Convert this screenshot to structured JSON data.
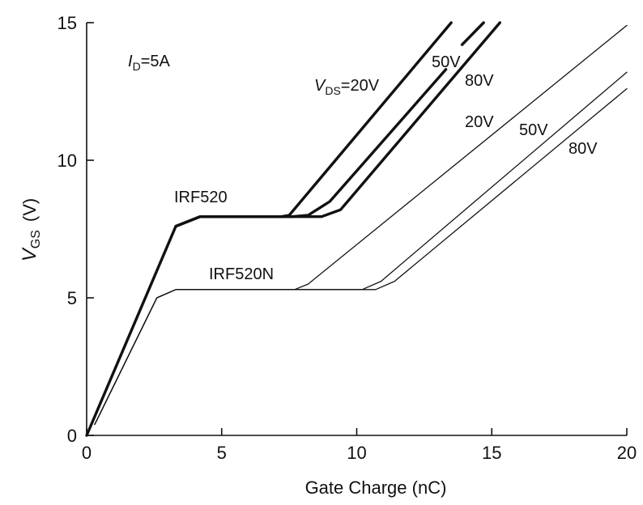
{
  "chart_data": {
    "type": "line",
    "xlabel": "Gate Charge (nC)",
    "ylabel": {
      "main": "V",
      "sub": "GS",
      "unit": "(V)"
    },
    "xlim": [
      0,
      20
    ],
    "ylim": [
      0,
      15
    ],
    "xticks": [
      0,
      5,
      10,
      15,
      20
    ],
    "yticks": [
      0,
      5,
      10,
      15
    ],
    "grid": false,
    "annotations": {
      "condition": {
        "main": "I",
        "sub": "D",
        "rest": "=5A"
      },
      "irf520": "IRF520",
      "irf520n": "IRF520N",
      "vds_prefix": {
        "main": "V",
        "sub": "DS",
        "rest": "=20V"
      },
      "bold_50": "50V",
      "bold_80": "80V",
      "thin_20": "20V",
      "thin_50": "50V",
      "thin_80": "80V"
    },
    "series": [
      {
        "device": "IRF520",
        "vds": "20V",
        "weight": "bold",
        "points": [
          [
            0,
            0
          ],
          [
            3.3,
            7.6
          ],
          [
            4.2,
            7.95
          ],
          [
            7.2,
            7.95
          ],
          [
            7.5,
            8.0
          ],
          [
            13.5,
            15.0
          ]
        ]
      },
      {
        "device": "IRF520",
        "vds": "50V",
        "weight": "bold",
        "points": [
          [
            3.3,
            7.6
          ],
          [
            4.2,
            7.95
          ],
          [
            7.6,
            7.95
          ],
          [
            8.2,
            8.0
          ],
          [
            9.0,
            8.5
          ],
          [
            13.3,
            13.3
          ]
        ]
      },
      {
        "device": "IRF520",
        "vds": "50V",
        "weight": "bold",
        "points": [
          [
            13.9,
            14.2
          ],
          [
            14.7,
            15.0
          ]
        ]
      },
      {
        "device": "IRF520",
        "vds": "80V",
        "weight": "bold",
        "points": [
          [
            3.3,
            7.6
          ],
          [
            4.2,
            7.95
          ],
          [
            8.7,
            7.95
          ],
          [
            9.4,
            8.2
          ],
          [
            15.3,
            15.0
          ]
        ]
      },
      {
        "device": "IRF520N",
        "vds": "20V",
        "weight": "thin",
        "points": [
          [
            0.3,
            0.4
          ],
          [
            2.6,
            5.0
          ],
          [
            3.3,
            5.3
          ],
          [
            7.7,
            5.3
          ],
          [
            8.2,
            5.5
          ],
          [
            20.0,
            14.9
          ]
        ]
      },
      {
        "device": "IRF520N",
        "vds": "50V",
        "weight": "thin",
        "points": [
          [
            0.3,
            0.4
          ],
          [
            2.6,
            5.0
          ],
          [
            3.3,
            5.3
          ],
          [
            10.2,
            5.3
          ],
          [
            10.9,
            5.6
          ],
          [
            20.0,
            13.2
          ]
        ]
      },
      {
        "device": "IRF520N",
        "vds": "80V",
        "weight": "thin",
        "points": [
          [
            0.3,
            0.4
          ],
          [
            2.6,
            5.0
          ],
          [
            3.3,
            5.3
          ],
          [
            10.7,
            5.3
          ],
          [
            11.4,
            5.6
          ],
          [
            20.0,
            12.6
          ]
        ]
      }
    ]
  }
}
